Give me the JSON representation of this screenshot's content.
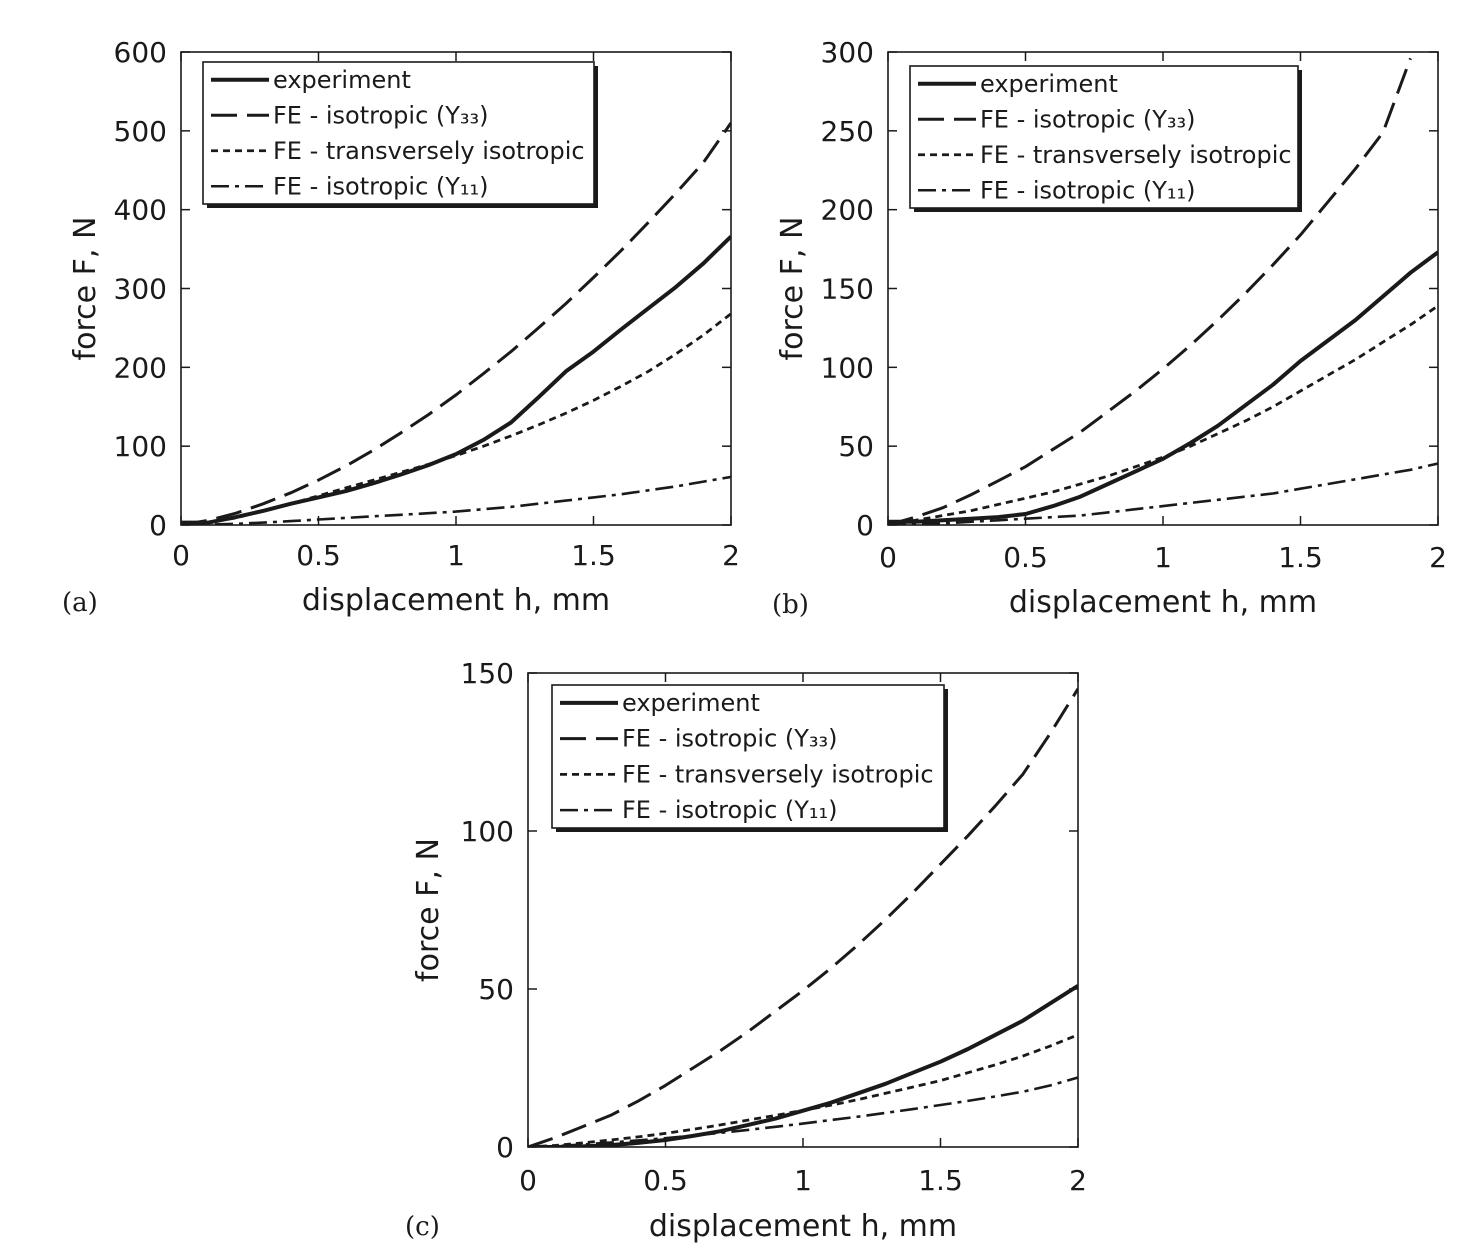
{
  "chart_data": [
    {
      "type": "line",
      "panel_label": "(a)",
      "xlabel": "displacement h, mm",
      "ylabel": "force F, N",
      "xlim": [
        0,
        2
      ],
      "ylim": [
        0,
        600
      ],
      "xticks": [
        "0",
        "0.5",
        "1",
        "1.5",
        "2"
      ],
      "yticks": [
        "0",
        "100",
        "200",
        "300",
        "400",
        "500",
        "600"
      ],
      "grid": false,
      "legend_position": "top-left",
      "series": [
        {
          "name": "experiment",
          "style": "solid",
          "x": [
            0,
            0.1,
            0.2,
            0.3,
            0.4,
            0.5,
            0.6,
            0.7,
            0.8,
            0.9,
            1.0,
            1.1,
            1.2,
            1.3,
            1.4,
            1.5,
            1.6,
            1.7,
            1.8,
            1.9,
            2.0
          ],
          "y": [
            3,
            3,
            10,
            18,
            27,
            35,
            43,
            53,
            64,
            76,
            90,
            108,
            130,
            162,
            195,
            220,
            248,
            275,
            302,
            332,
            366
          ]
        },
        {
          "name": "FE - isotropic (Y₃₃)",
          "style": "long-dash",
          "x": [
            0,
            0.1,
            0.2,
            0.3,
            0.4,
            0.5,
            0.6,
            0.7,
            0.8,
            0.9,
            1.0,
            1.1,
            1.2,
            1.3,
            1.4,
            1.5,
            1.6,
            1.7,
            1.8,
            1.9,
            2.0
          ],
          "y": [
            0,
            6,
            15,
            27,
            41,
            57,
            75,
            95,
            117,
            140,
            165,
            192,
            220,
            250,
            281,
            314,
            348,
            384,
            421,
            460,
            510
          ]
        },
        {
          "name": "FE - transversely isotropic",
          "style": "short-dash",
          "x": [
            0,
            0.1,
            0.2,
            0.3,
            0.4,
            0.5,
            0.6,
            0.7,
            0.8,
            0.9,
            1.0,
            1.1,
            1.2,
            1.3,
            1.4,
            1.5,
            1.6,
            1.7,
            1.8,
            1.9,
            2.0
          ],
          "y": [
            0,
            3,
            9,
            18,
            27,
            37,
            47,
            57,
            67,
            77,
            88,
            100,
            113,
            127,
            142,
            158,
            176,
            195,
            217,
            241,
            268
          ]
        },
        {
          "name": "FE - isotropic (Y₁₁)",
          "style": "dash-dot",
          "x": [
            0,
            0.1,
            0.2,
            0.3,
            0.4,
            0.5,
            0.6,
            0.7,
            0.8,
            0.9,
            1.0,
            1.1,
            1.2,
            1.3,
            1.4,
            1.5,
            1.6,
            1.7,
            1.8,
            1.9,
            2.0
          ],
          "y": [
            0,
            0.5,
            1.5,
            3,
            5,
            7,
            9,
            11,
            13,
            15,
            17,
            20,
            23,
            27,
            31,
            35,
            39,
            44,
            49,
            55,
            61
          ]
        }
      ]
    },
    {
      "type": "line",
      "panel_label": "(b)",
      "xlabel": "displacement h, mm",
      "ylabel": "force F, N",
      "xlim": [
        0,
        2
      ],
      "ylim": [
        0,
        300
      ],
      "xticks": [
        "0",
        "0.5",
        "1",
        "1.5",
        "2"
      ],
      "yticks": [
        "0",
        "50",
        "100",
        "150",
        "200",
        "250",
        "300"
      ],
      "grid": false,
      "legend_position": "top-left",
      "series": [
        {
          "name": "experiment",
          "style": "solid",
          "x": [
            0,
            0.1,
            0.2,
            0.3,
            0.4,
            0.5,
            0.6,
            0.7,
            0.8,
            0.9,
            1.0,
            1.1,
            1.2,
            1.3,
            1.4,
            1.5,
            1.6,
            1.7,
            1.8,
            1.9,
            2.0
          ],
          "y": [
            2,
            2,
            3,
            4,
            5,
            7,
            12,
            18,
            26,
            34,
            42,
            52,
            63,
            76,
            89,
            104,
            117,
            130,
            145,
            160,
            173
          ]
        },
        {
          "name": "FE - isotropic (Y₃₃)",
          "style": "long-dash",
          "x": [
            0,
            0.1,
            0.2,
            0.3,
            0.4,
            0.5,
            0.6,
            0.7,
            0.8,
            0.9,
            1.0,
            1.1,
            1.2,
            1.3,
            1.4,
            1.5,
            1.6,
            1.7,
            1.8,
            1.9
          ],
          "y": [
            0,
            5,
            11,
            19,
            28,
            37,
            48,
            59,
            72,
            85,
            99,
            114,
            130,
            147,
            165,
            184,
            205,
            226,
            249,
            296
          ]
        },
        {
          "name": "FE - transversely isotropic",
          "style": "short-dash",
          "x": [
            0,
            0.1,
            0.2,
            0.3,
            0.4,
            0.5,
            0.6,
            0.7,
            0.8,
            0.9,
            1.0,
            1.1,
            1.2,
            1.3,
            1.4,
            1.5,
            1.6,
            1.7,
            1.8,
            1.9,
            2.0
          ],
          "y": [
            0,
            3,
            6,
            9,
            13,
            17,
            21,
            26,
            31,
            37,
            43,
            50,
            58,
            66,
            75,
            85,
            95,
            105,
            116,
            127,
            139
          ]
        },
        {
          "name": "FE - isotropic (Y₁₁)",
          "style": "dash-dot",
          "x": [
            0,
            0.1,
            0.2,
            0.3,
            0.4,
            0.5,
            0.6,
            0.7,
            0.8,
            0.9,
            1.0,
            1.1,
            1.2,
            1.3,
            1.4,
            1.5,
            1.6,
            1.7,
            1.8,
            1.9,
            2.0
          ],
          "y": [
            0,
            0.5,
            1,
            2,
            3,
            4,
            5,
            6,
            8,
            10,
            12,
            14,
            16,
            18,
            20,
            23,
            26,
            29,
            32,
            35,
            39
          ]
        }
      ]
    },
    {
      "type": "line",
      "panel_label": "(c)",
      "xlabel": "displacement h, mm",
      "ylabel": "force F, N",
      "xlim": [
        0,
        2
      ],
      "ylim": [
        0,
        150
      ],
      "xticks": [
        "0",
        "0.5",
        "1",
        "1.5",
        "2"
      ],
      "yticks": [
        "0",
        "50",
        "100",
        "150"
      ],
      "grid": false,
      "legend_position": "top-left",
      "series": [
        {
          "name": "experiment",
          "style": "solid",
          "x": [
            0,
            0.1,
            0.2,
            0.3,
            0.4,
            0.5,
            0.6,
            0.7,
            0.8,
            0.9,
            1.0,
            1.1,
            1.2,
            1.3,
            1.4,
            1.5,
            1.6,
            1.7,
            1.8,
            1.9,
            2.0
          ],
          "y": [
            0,
            0,
            0.2,
            0.6,
            1.3,
            2.2,
            3.5,
            5,
            7,
            9,
            11.5,
            14,
            17,
            20,
            23.5,
            27,
            31,
            35.5,
            40,
            45.5,
            51
          ]
        },
        {
          "name": "FE - isotropic (Y₃₃)",
          "style": "long-dash",
          "x": [
            0,
            0.1,
            0.2,
            0.3,
            0.4,
            0.5,
            0.6,
            0.7,
            0.8,
            0.9,
            1.0,
            1.1,
            1.2,
            1.3,
            1.4,
            1.5,
            1.6,
            1.7,
            1.8,
            1.9,
            2.0
          ],
          "y": [
            0,
            3,
            6.5,
            10,
            14.5,
            19.5,
            25,
            30.5,
            36.5,
            43,
            49.5,
            56.5,
            64,
            72,
            80.5,
            89.5,
            98.5,
            108,
            118,
            131,
            145
          ]
        },
        {
          "name": "FE - transversely isotropic",
          "style": "short-dash",
          "x": [
            0,
            0.1,
            0.2,
            0.3,
            0.4,
            0.5,
            0.6,
            0.7,
            0.8,
            0.9,
            1.0,
            1.1,
            1.2,
            1.3,
            1.4,
            1.5,
            1.6,
            1.7,
            1.8,
            1.9,
            2.0
          ],
          "y": [
            0,
            0.5,
            1.3,
            2.2,
            3.2,
            4.3,
            5.6,
            7,
            8.5,
            10,
            11.6,
            13.2,
            15,
            17,
            19,
            21,
            23.5,
            26,
            28.8,
            32,
            35.5
          ]
        },
        {
          "name": "FE - isotropic (Y₁₁)",
          "style": "dash-dot",
          "x": [
            0,
            0.1,
            0.2,
            0.3,
            0.4,
            0.5,
            0.6,
            0.7,
            0.8,
            0.9,
            1.0,
            1.1,
            1.2,
            1.3,
            1.4,
            1.5,
            1.6,
            1.7,
            1.8,
            1.9,
            2.0
          ],
          "y": [
            0,
            0.3,
            0.8,
            1.4,
            2.1,
            2.8,
            3.6,
            4.5,
            5.4,
            6.4,
            7.4,
            8.5,
            9.6,
            10.8,
            12,
            13.3,
            14.6,
            16,
            17.5,
            19.5,
            22
          ]
        }
      ]
    }
  ]
}
